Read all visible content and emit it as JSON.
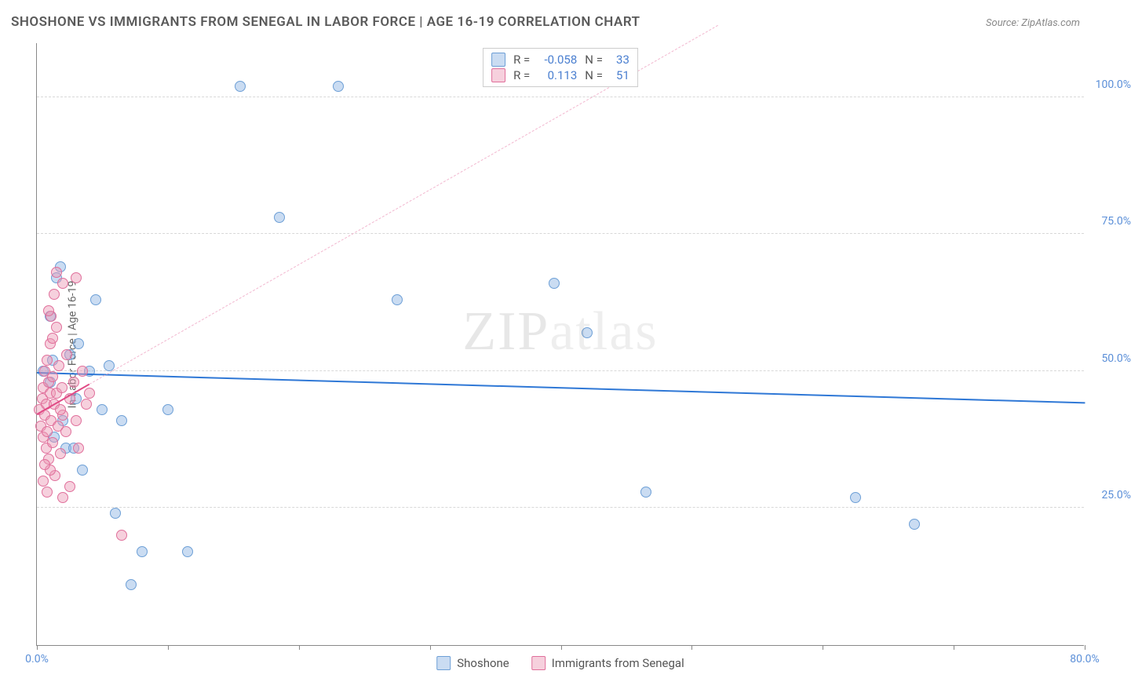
{
  "title": "SHOSHONE VS IMMIGRANTS FROM SENEGAL IN LABOR FORCE | AGE 16-19 CORRELATION CHART",
  "source": "Source: ZipAtlas.com",
  "watermark_a": "ZIP",
  "watermark_b": "atlas",
  "y_axis_label": "In Labor Force | Age 16-19",
  "chart": {
    "type": "scatter",
    "background": "#ffffff",
    "grid_color": "#d8d8d8",
    "axis_color": "#888888",
    "xlim": [
      0,
      80
    ],
    "ylim": [
      0,
      110
    ],
    "x_ticks": [
      0,
      10,
      20,
      30,
      40,
      50,
      60,
      70,
      80
    ],
    "x_tick_labels": {
      "0": "0.0%",
      "80": "80.0%"
    },
    "y_ticks": [
      25,
      50,
      75,
      100
    ],
    "y_tick_labels": {
      "25": "25.0%",
      "50": "50.0%",
      "75": "75.0%",
      "100": "100.0%"
    },
    "marker_radius": 7,
    "series": [
      {
        "name": "Shoshone",
        "fill": "rgba(137,178,226,0.45)",
        "stroke": "#6d9fd6",
        "r_label": "R =",
        "r_value": "-0.058",
        "n_label": "N =",
        "n_value": "33",
        "trend": {
          "x1": 0,
          "y1": 49.5,
          "x2": 80,
          "y2": 44.0,
          "color": "#2f78d6",
          "width": 2.5,
          "dashed": false
        },
        "points": [
          [
            0.5,
            50
          ],
          [
            1.0,
            48
          ],
          [
            1.2,
            52
          ],
          [
            1.5,
            67
          ],
          [
            1.8,
            69
          ],
          [
            2.0,
            41
          ],
          [
            2.2,
            36
          ],
          [
            2.5,
            53
          ],
          [
            3.0,
            45
          ],
          [
            3.2,
            55
          ],
          [
            3.5,
            32
          ],
          [
            4.0,
            50
          ],
          [
            4.5,
            63
          ],
          [
            5.0,
            43
          ],
          [
            5.5,
            51
          ],
          [
            6.0,
            24
          ],
          [
            6.5,
            41
          ],
          [
            7.2,
            11
          ],
          [
            8.0,
            17
          ],
          [
            10.0,
            43
          ],
          [
            11.5,
            17
          ],
          [
            15.5,
            102
          ],
          [
            18.5,
            78
          ],
          [
            23.0,
            102
          ],
          [
            27.5,
            63
          ],
          [
            42.0,
            57
          ],
          [
            39.5,
            66
          ],
          [
            46.5,
            28
          ],
          [
            62.5,
            27
          ],
          [
            67.0,
            22
          ],
          [
            1.0,
            60
          ],
          [
            1.3,
            38
          ],
          [
            2.8,
            36
          ]
        ]
      },
      {
        "name": "Immigrants from Senegal",
        "fill": "rgba(236,150,180,0.45)",
        "stroke": "#e06f9b",
        "r_label": "R =",
        "r_value": "0.113",
        "n_label": "N =",
        "n_value": "51",
        "trend": {
          "x1": 0,
          "y1": 42.0,
          "x2": 4.0,
          "y2": 47.5,
          "color": "#e14b86",
          "width": 2.5,
          "dashed": false
        },
        "trend_ext": {
          "x1": 4.0,
          "y1": 47.5,
          "x2": 52.0,
          "y2": 113.0,
          "color": "#f2b7cf",
          "width": 1.5,
          "dashed": true
        },
        "points": [
          [
            0.2,
            43
          ],
          [
            0.3,
            40
          ],
          [
            0.4,
            45
          ],
          [
            0.5,
            38
          ],
          [
            0.5,
            47
          ],
          [
            0.6,
            42
          ],
          [
            0.6,
            50
          ],
          [
            0.7,
            36
          ],
          [
            0.7,
            44
          ],
          [
            0.8,
            52
          ],
          [
            0.8,
            39
          ],
          [
            0.9,
            48
          ],
          [
            0.9,
            34
          ],
          [
            1.0,
            46
          ],
          [
            1.0,
            55
          ],
          [
            1.1,
            41
          ],
          [
            1.1,
            60
          ],
          [
            1.2,
            49
          ],
          [
            1.2,
            37
          ],
          [
            1.3,
            44
          ],
          [
            1.3,
            64
          ],
          [
            1.4,
            31
          ],
          [
            1.5,
            46
          ],
          [
            1.5,
            58
          ],
          [
            1.6,
            40
          ],
          [
            1.7,
            51
          ],
          [
            1.8,
            35
          ],
          [
            1.9,
            47
          ],
          [
            2.0,
            42
          ],
          [
            2.0,
            66
          ],
          [
            2.2,
            39
          ],
          [
            2.3,
            53
          ],
          [
            2.5,
            45
          ],
          [
            2.5,
            29
          ],
          [
            2.8,
            48
          ],
          [
            3.0,
            41
          ],
          [
            3.0,
            67
          ],
          [
            3.2,
            36
          ],
          [
            3.5,
            50
          ],
          [
            3.8,
            44
          ],
          [
            0.5,
            30
          ],
          [
            0.8,
            28
          ],
          [
            1.5,
            68
          ],
          [
            1.0,
            32
          ],
          [
            0.6,
            33
          ],
          [
            2.0,
            27
          ],
          [
            4.0,
            46
          ],
          [
            6.5,
            20
          ],
          [
            1.2,
            56
          ],
          [
            0.9,
            61
          ],
          [
            1.8,
            43
          ]
        ]
      }
    ],
    "legend_labels": [
      "Shoshone",
      "Immigrants from Senegal"
    ]
  }
}
